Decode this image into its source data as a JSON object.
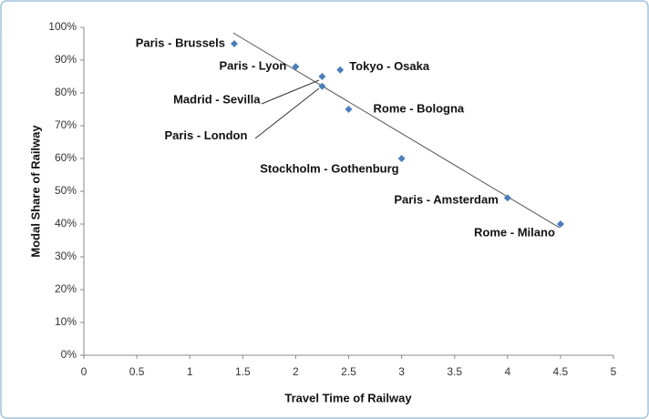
{
  "chart_data": {
    "type": "scatter",
    "x_label": "Travel Time of Railway",
    "y_label": "Modal Share of Railway",
    "color": "#4a7ebb",
    "labels": [
      "Paris - Brussels",
      "Paris - Lyon",
      "Madrid - Sevilla",
      "Paris - London",
      "Tokyo - Osaka",
      "Rome - Bologna",
      "Stockholm - Gothenburg",
      "Paris - Amsterdam",
      "Rome - Milano"
    ],
    "x": [
      1.42,
      2.0,
      2.25,
      2.25,
      2.42,
      2.5,
      3.0,
      4.0,
      4.5
    ],
    "values": [
      95,
      88,
      85,
      82,
      87,
      75,
      60,
      48,
      40
    ],
    "trendline": {
      "x": [
        1.41,
        4.49
      ],
      "values": [
        98.3,
        38.9
      ],
      "color": "#555555"
    },
    "xlim": [
      0,
      5
    ],
    "xticks": [
      0,
      0.5,
      1,
      1.5,
      2,
      2.5,
      3,
      3.5,
      4,
      4.5,
      5
    ],
    "ylim": [
      0,
      100
    ],
    "yticks": [
      {
        "value": 0,
        "label": "0%"
      },
      {
        "value": 10,
        "label": "10%"
      },
      {
        "value": 20,
        "label": "20%"
      },
      {
        "value": 30,
        "label": "30%"
      },
      {
        "value": 40,
        "label": "40%"
      },
      {
        "value": 50,
        "label": "50%"
      },
      {
        "value": 60,
        "label": "60%"
      },
      {
        "value": 70,
        "label": "70%"
      },
      {
        "value": 80,
        "label": "80%"
      },
      {
        "value": 90,
        "label": "90%"
      },
      {
        "value": 100,
        "label": "100%"
      }
    ],
    "grid": false
  }
}
